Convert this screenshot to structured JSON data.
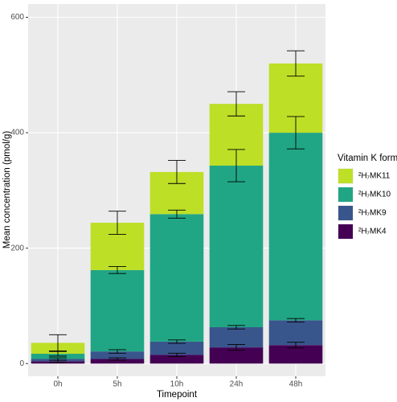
{
  "chart_data": {
    "type": "stacked-bar",
    "x_label": "Timepoint",
    "y_label": "Mean concentration (pmol/g)",
    "legend_title": "Vitamin K form",
    "categories": [
      "0h",
      "5h",
      "10h",
      "24h",
      "48h"
    ],
    "series": [
      {
        "name": "²H₇MK4",
        "color": "#440154",
        "values": [
          4,
          8,
          15,
          28,
          32
        ],
        "errors": [
          2,
          2,
          3,
          5,
          5
        ]
      },
      {
        "name": "²H₇MK9",
        "color": "#39568c",
        "values": [
          4,
          13,
          23,
          35,
          43
        ],
        "errors": [
          2,
          3,
          3,
          3,
          3
        ]
      },
      {
        "name": "²H₇MK10",
        "color": "#21a685",
        "values": [
          9,
          141,
          221,
          280,
          325
        ],
        "errors": [
          4,
          6,
          7,
          28,
          28
        ]
      },
      {
        "name": "²H₇MK11",
        "color": "#bddf26",
        "values": [
          19,
          82,
          73,
          107,
          120
        ],
        "errors": [
          14,
          20,
          20,
          21,
          22
        ]
      }
    ],
    "ylim": [
      -22,
      623
    ],
    "yticks": [
      0,
      200,
      400,
      600
    ],
    "grid": true,
    "legend": "right"
  }
}
